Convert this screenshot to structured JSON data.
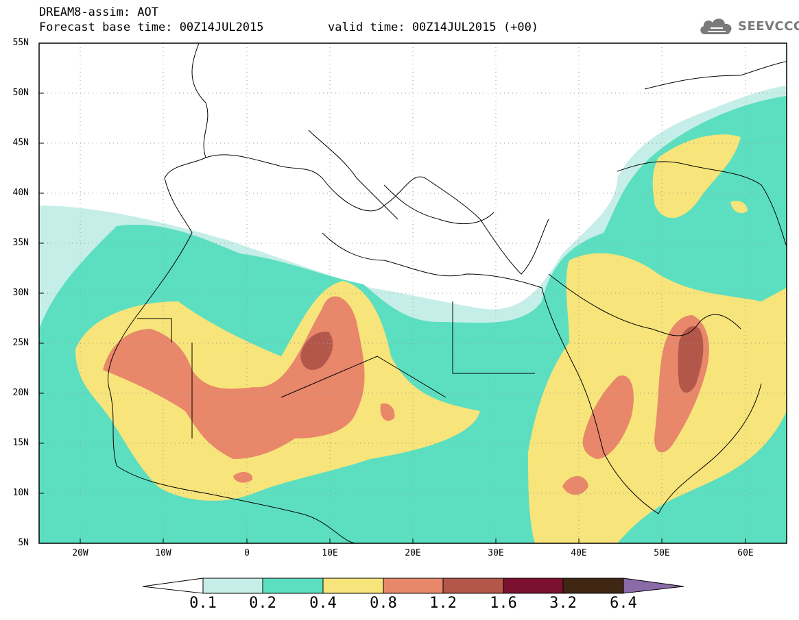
{
  "header": {
    "title": "DREAM8-assim: AOT",
    "base_time": "Forecast base time: 00Z14JUL2015",
    "valid_time": "valid time: 00Z14JUL2015 (+00)"
  },
  "logo": {
    "text": "SEEVCCC",
    "icon": "cloud-icon",
    "color": "#7a7a7a"
  },
  "map": {
    "lat_labels": [
      "55N",
      "50N",
      "45N",
      "40N",
      "35N",
      "30N",
      "25N",
      "20N",
      "15N",
      "10N",
      "5N"
    ],
    "lon_labels": [
      "20W",
      "10W",
      "0",
      "10E",
      "20E",
      "30E",
      "40E",
      "50E",
      "60E"
    ],
    "lat_range": [
      5,
      55
    ],
    "lon_range": [
      -25,
      65
    ],
    "gridlines": "dotted"
  },
  "colorbar": {
    "labels": [
      "0.1",
      "0.2",
      "0.4",
      "0.8",
      "1.2",
      "1.6",
      "3.2",
      "6.4"
    ],
    "colors": [
      "#c6eee8",
      "#5cdfc0",
      "#f7e47a",
      "#e8876a",
      "#b3574a",
      "#7c1030",
      "#3f2714",
      "#8b6aa8"
    ]
  }
}
